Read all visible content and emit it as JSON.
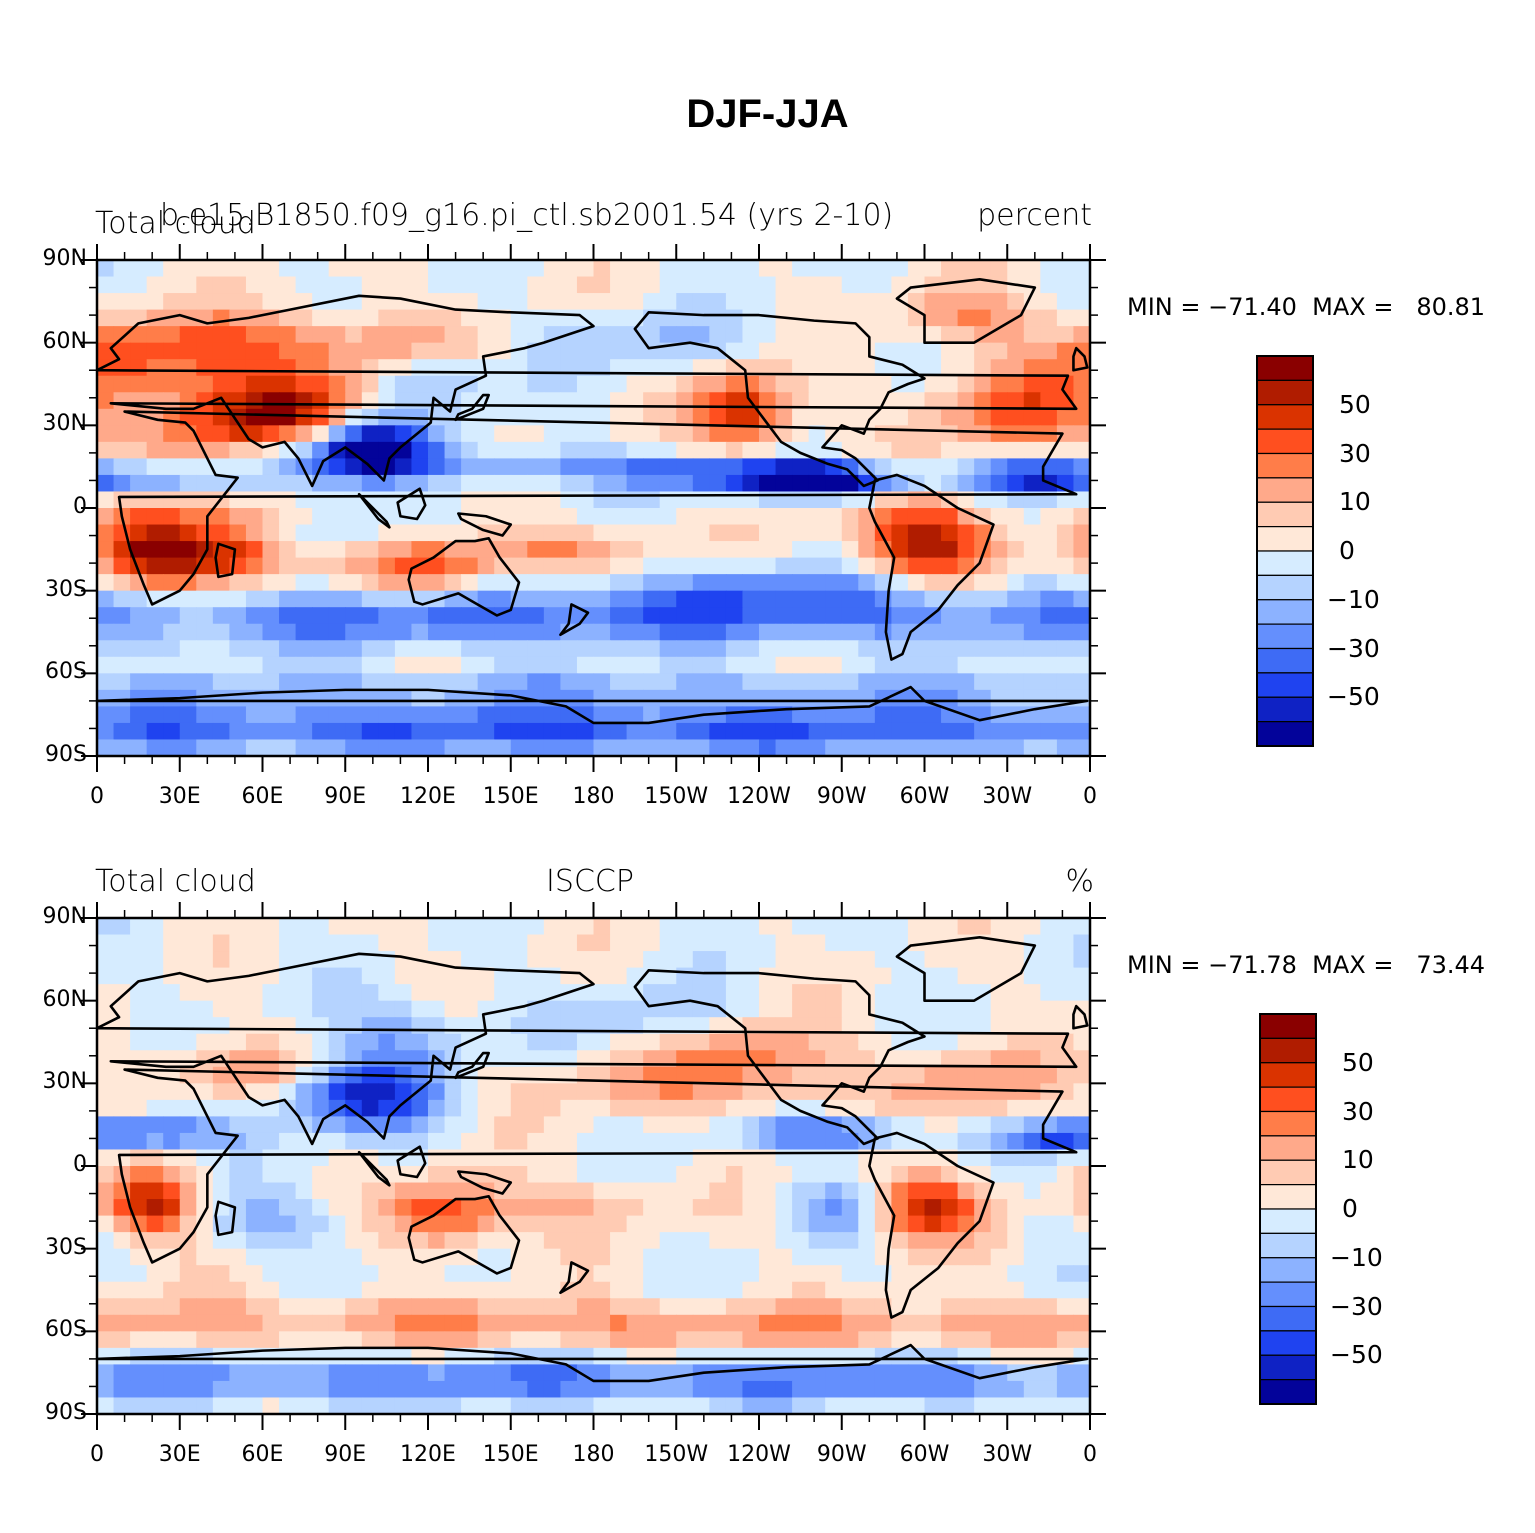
{
  "title": "DJF-JJA",
  "panels": [
    {
      "left_label": "Total cloud",
      "center_label": "b.e15.B1850.f09_g16.pi_ctl.sb2001.54 (yrs 2-10)",
      "right_label": "percent",
      "stats": "MIN = −71.40  MAX =   80.81",
      "min": -71.4,
      "max": 80.81
    },
    {
      "left_label": "Total cloud",
      "center_label": "ISCCP",
      "right_label": "%",
      "stats": "MIN = −71.78  MAX =   73.44",
      "min": -71.78,
      "max": 73.44
    }
  ],
  "lat_ticks": [
    "90N",
    "60N",
    "30N",
    "0",
    "30S",
    "60S",
    "90S"
  ],
  "lon_ticks": [
    "0",
    "30E",
    "60E",
    "90E",
    "120E",
    "150E",
    "180",
    "150W",
    "120W",
    "90W",
    "60W",
    "30W",
    "0"
  ],
  "colorbar": {
    "labels": [
      "50",
      "30",
      "10",
      "0",
      "−10",
      "−30",
      "−50"
    ],
    "colors": [
      "#8a0000",
      "#b01c00",
      "#da3300",
      "#ff4f1f",
      "#ff7d49",
      "#ffa98a",
      "#ffcbb3",
      "#ffe8d8",
      "#d6ecff",
      "#b5d3ff",
      "#8cb2ff",
      "#648ffd",
      "#3e6bf5",
      "#1f43f0",
      "#0f22c4",
      "#03039a"
    ]
  }
}
